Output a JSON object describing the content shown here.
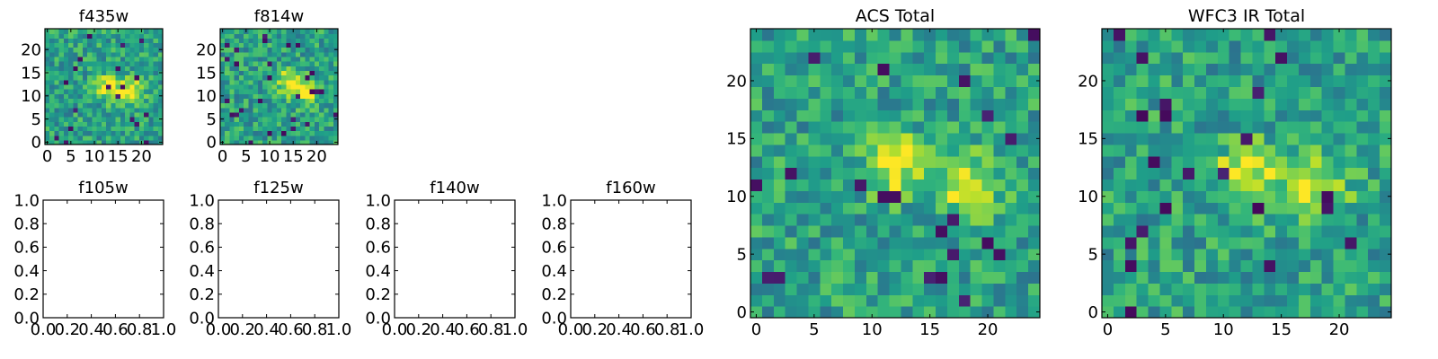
{
  "figure": {
    "panels": [
      {
        "id": "f435w",
        "title": "f435w"
      },
      {
        "id": "f814w",
        "title": "f814w"
      },
      {
        "id": "f105w",
        "title": "f105w"
      },
      {
        "id": "f125w",
        "title": "f125w"
      },
      {
        "id": "f140w",
        "title": "f140w"
      },
      {
        "id": "f160w",
        "title": "f160w"
      },
      {
        "id": "acs_total",
        "title": "ACS Total"
      },
      {
        "id": "wfc3_ir_total",
        "title": "WFC3 IR Total"
      }
    ]
  },
  "chart_data": [
    {
      "type": "heatmap",
      "title": "f435w",
      "xlim": [
        -0.5,
        24.5
      ],
      "ylim": [
        -0.5,
        24.5
      ],
      "xticks": [
        0,
        5,
        10,
        15,
        20
      ],
      "yticks": [
        0,
        5,
        10,
        15,
        20
      ],
      "grid": false,
      "colormap": "viridis",
      "grid_size": [
        25,
        25
      ],
      "bright_regions": [
        [
          13,
          12
        ],
        [
          18,
          11
        ]
      ]
    },
    {
      "type": "heatmap",
      "title": "f814w",
      "xlim": [
        -0.5,
        24.5
      ],
      "ylim": [
        -0.5,
        24.5
      ],
      "xticks": [
        0,
        5,
        10,
        15,
        20
      ],
      "yticks": [
        0,
        5,
        10,
        15,
        20
      ],
      "grid": false,
      "colormap": "viridis",
      "grid_size": [
        25,
        25
      ],
      "bright_regions": [
        [
          14,
          13
        ],
        [
          18,
          11
        ]
      ]
    },
    {
      "type": "empty",
      "title": "f105w",
      "xlim": [
        0,
        1
      ],
      "ylim": [
        0,
        1
      ],
      "xticks": [
        "0.0",
        "0.2",
        "0.4",
        "0.6",
        "0.8",
        "1.0"
      ],
      "yticks": [
        "0.0",
        "0.2",
        "0.4",
        "0.6",
        "0.8",
        "1.0"
      ]
    },
    {
      "type": "empty",
      "title": "f125w",
      "xlim": [
        0,
        1
      ],
      "ylim": [
        0,
        1
      ],
      "xticks": [
        "0.0",
        "0.2",
        "0.4",
        "0.6",
        "0.8",
        "1.0"
      ],
      "yticks": [
        "0.0",
        "0.2",
        "0.4",
        "0.6",
        "0.8",
        "1.0"
      ]
    },
    {
      "type": "empty",
      "title": "f140w",
      "xlim": [
        0,
        1
      ],
      "ylim": [
        0,
        1
      ],
      "xticks": [
        "0.0",
        "0.2",
        "0.4",
        "0.6",
        "0.8",
        "1.0"
      ],
      "yticks": [
        "0.0",
        "0.2",
        "0.4",
        "0.6",
        "0.8",
        "1.0"
      ]
    },
    {
      "type": "empty",
      "title": "f160w",
      "xlim": [
        0,
        1
      ],
      "ylim": [
        0,
        1
      ],
      "xticks": [
        "0.0",
        "0.2",
        "0.4",
        "0.6",
        "0.8",
        "1.0"
      ],
      "yticks": [
        "0.0",
        "0.2",
        "0.4",
        "0.6",
        "0.8",
        "1.0"
      ]
    },
    {
      "type": "heatmap",
      "title": "ACS Total",
      "xlim": [
        -0.5,
        24.5
      ],
      "ylim": [
        -0.5,
        24.5
      ],
      "xticks": [
        0,
        5,
        10,
        15,
        20
      ],
      "yticks": [
        0,
        5,
        10,
        15,
        20
      ],
      "grid": false,
      "colormap": "viridis",
      "grid_size": [
        25,
        25
      ],
      "bright_regions": [
        [
          12,
          13
        ],
        [
          18,
          11
        ]
      ]
    },
    {
      "type": "heatmap",
      "title": "WFC3 IR Total",
      "xlim": [
        -0.5,
        24.5
      ],
      "ylim": [
        -0.5,
        24.5
      ],
      "xticks": [
        0,
        5,
        10,
        15,
        20
      ],
      "yticks": [
        0,
        5,
        10,
        15,
        20
      ],
      "grid": false,
      "colormap": "viridis",
      "grid_size": [
        25,
        25
      ],
      "bright_regions": [
        [
          12,
          12
        ],
        [
          18,
          11
        ]
      ]
    }
  ]
}
